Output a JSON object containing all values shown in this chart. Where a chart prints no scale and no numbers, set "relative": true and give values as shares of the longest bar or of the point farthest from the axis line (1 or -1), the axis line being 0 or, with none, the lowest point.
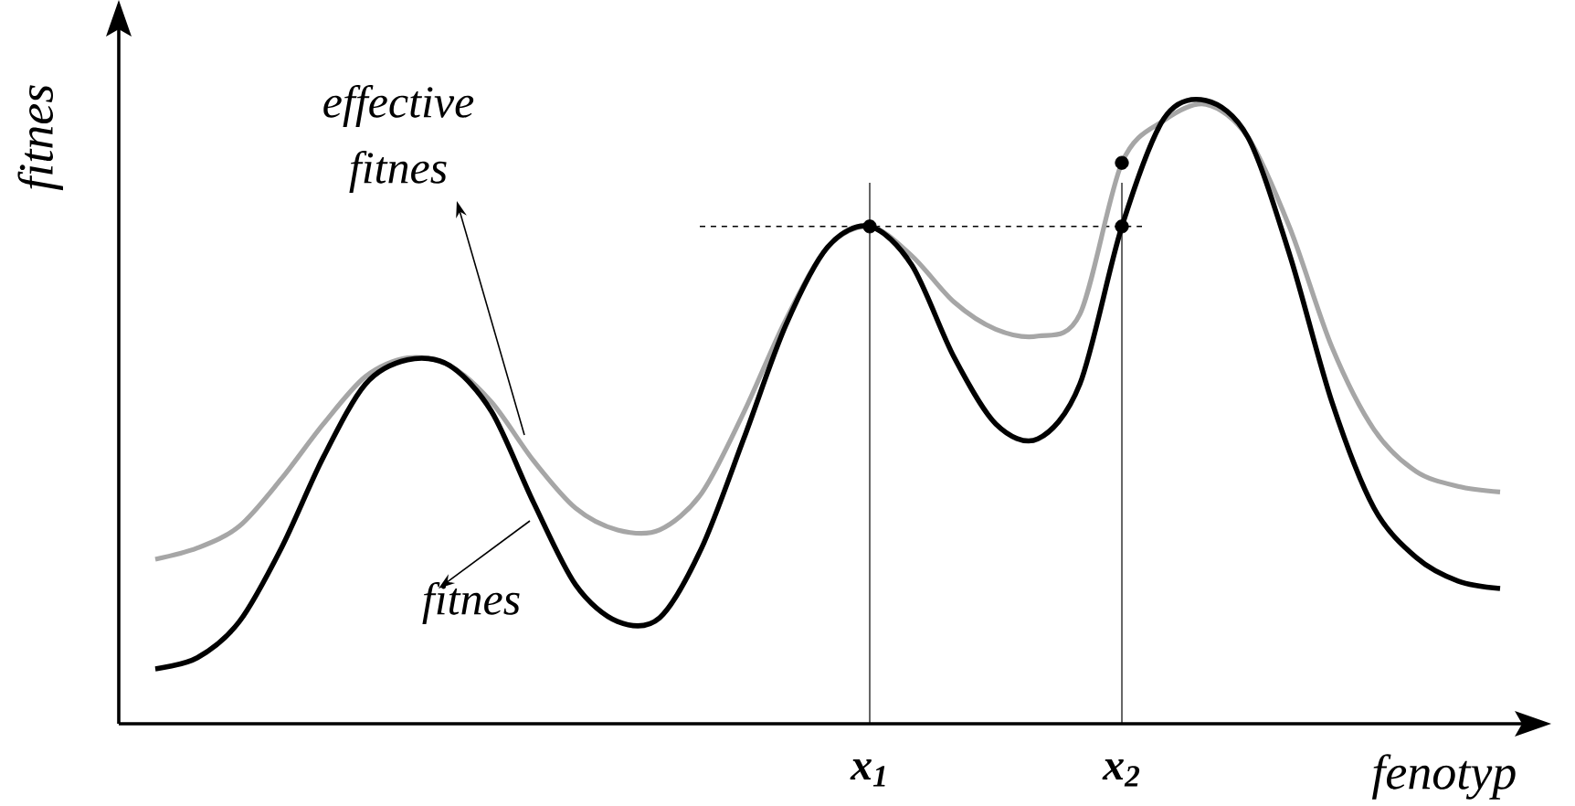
{
  "chart_data": {
    "type": "line",
    "relative": true,
    "xlabel": "fenotyp",
    "ylabel": "fitnes",
    "annotations": [
      "effective fitnes",
      "fitnes"
    ],
    "categories": [
      null,
      null,
      null,
      null,
      null,
      null,
      null,
      null,
      null,
      null,
      null,
      null,
      null,
      null,
      null,
      null,
      null,
      "x$_{1}$",
      null,
      null,
      null,
      null,
      null,
      "x$_{2}$",
      null,
      null,
      null,
      null,
      null,
      null,
      null,
      null,
      null
    ],
    "series": [
      {
        "color": "#a6a6a6",
        "marker": "none",
        "values": [
          0.264,
          0.282,
          0.317,
          0.393,
          0.481,
          0.557,
          0.587,
          0.575,
          0.516,
          0.422,
          0.346,
          0.311,
          0.311,
          0.37,
          0.499,
          0.648,
          0.765,
          0.798,
          0.751,
          0.677,
          0.633,
          0.622,
          0.657,
          0.9,
          0.968,
          0.994,
          0.941,
          0.795,
          0.604,
          0.472,
          0.405,
          0.381,
          0.372
        ]
      },
      {
        "color": "#000000",
        "marker": "none",
        "values": [
          0.088,
          0.106,
          0.164,
          0.282,
          0.428,
          0.545,
          0.584,
          0.575,
          0.501,
          0.355,
          0.223,
          0.164,
          0.17,
          0.282,
          0.457,
          0.639,
          0.765,
          0.798,
          0.736,
          0.589,
          0.481,
          0.457,
          0.545,
          0.798,
          0.971,
          1,
          0.941,
          0.751,
          0.516,
          0.346,
          0.267,
          0.229,
          0.217
        ]
      },
      {
        "type": "scatter",
        "color": "#000000",
        "marker": "circle",
        "x": [
          "x$_{1}$",
          "x$_{2}$",
          "x$_{2}$"
        ],
        "values": [
          0.798,
          0.798,
          0.9
        ]
      }
    ],
    "ref_lines": [
      {
        "axis": "y",
        "value": 0.798,
        "color": "#000000",
        "line_style": "dashed"
      },
      {
        "axis": "x",
        "value": "x$_{1}$",
        "color": "#000000",
        "line_style": "solid"
      },
      {
        "axis": "x",
        "value": "x$_{2}$",
        "color": "#000000",
        "line_style": "solid"
      }
    ]
  }
}
